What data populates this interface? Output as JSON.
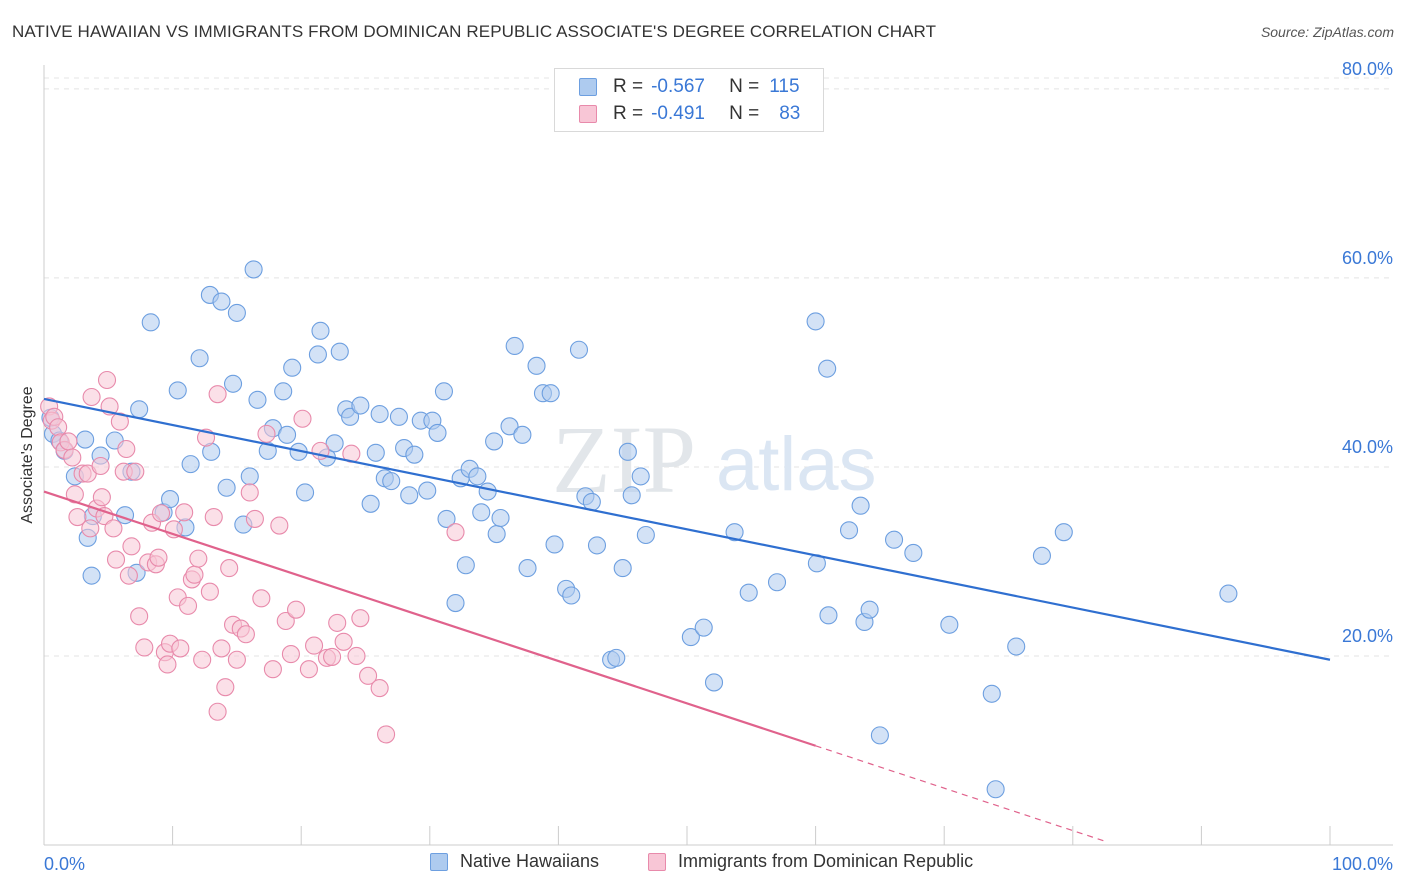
{
  "title": "NATIVE HAWAIIAN VS IMMIGRANTS FROM DOMINICAN REPUBLIC ASSOCIATE'S DEGREE CORRELATION CHART",
  "source": "Source: ZipAtlas.com",
  "watermark": {
    "zip": "ZIP",
    "atlas": "atlas"
  },
  "legend_top": [
    {
      "r_label": "R =",
      "r_value": "-0.567",
      "n_label": "N =",
      "n_value": "115",
      "color": "#aecbef",
      "border": "#6d9fe0"
    },
    {
      "r_label": "R =",
      "r_value": "-0.491",
      "n_label": "N =",
      "n_value": "83",
      "color": "#f8c6d6",
      "border": "#e88aab"
    }
  ],
  "legend_bottom": [
    {
      "label": "Native Hawaiians",
      "color": "#aecbef",
      "border": "#6d9fe0"
    },
    {
      "label": "Immigrants from Dominican Republic",
      "color": "#f8c6d6",
      "border": "#e88aab"
    }
  ],
  "chart_data": {
    "type": "scatter",
    "title": "NATIVE HAWAIIAN VS IMMIGRANTS FROM DOMINICAN REPUBLIC ASSOCIATE'S DEGREE CORRELATION CHART",
    "xlabel": "",
    "ylabel": "Associate's Degree",
    "xlim": [
      0,
      100
    ],
    "ylim": [
      0,
      82
    ],
    "x_tick_labels": [
      "0.0%",
      "100.0%"
    ],
    "y_ticks": [
      20,
      40,
      60,
      80
    ],
    "y_tick_labels": [
      "20.0%",
      "40.0%",
      "60.0%",
      "80.0%"
    ],
    "grid": true,
    "legend": "bottom",
    "series": [
      {
        "name": "Native Hawaiians",
        "color": "#6d9fe0",
        "fill": "#aecbef",
        "trend": {
          "x": [
            0,
            100
          ],
          "y": [
            47.2,
            19.6
          ],
          "color": "#2f6fd0"
        },
        "points": [
          [
            0.5,
            45.2
          ],
          [
            0.7,
            43.5
          ],
          [
            1.2,
            42.8
          ],
          [
            1.6,
            41.7
          ],
          [
            2.4,
            39.0
          ],
          [
            3.2,
            42.9
          ],
          [
            3.4,
            32.5
          ],
          [
            3.7,
            28.5
          ],
          [
            3.8,
            34.8
          ],
          [
            4.4,
            41.2
          ],
          [
            5.5,
            42.8
          ],
          [
            6.3,
            34.9
          ],
          [
            6.8,
            39.5
          ],
          [
            7.2,
            28.8
          ],
          [
            7.4,
            46.1
          ],
          [
            8.3,
            55.3
          ],
          [
            9.3,
            35.2
          ],
          [
            9.8,
            36.6
          ],
          [
            10.4,
            48.1
          ],
          [
            11.0,
            33.6
          ],
          [
            11.4,
            40.3
          ],
          [
            12.1,
            51.5
          ],
          [
            12.9,
            58.2
          ],
          [
            13.0,
            41.6
          ],
          [
            13.8,
            57.5
          ],
          [
            14.2,
            37.8
          ],
          [
            14.7,
            48.8
          ],
          [
            15.0,
            56.3
          ],
          [
            15.5,
            33.9
          ],
          [
            16.0,
            39.0
          ],
          [
            16.3,
            60.9
          ],
          [
            16.6,
            47.1
          ],
          [
            17.4,
            41.7
          ],
          [
            17.8,
            44.1
          ],
          [
            18.6,
            48.0
          ],
          [
            18.9,
            43.4
          ],
          [
            19.3,
            50.5
          ],
          [
            19.8,
            41.6
          ],
          [
            20.3,
            37.3
          ],
          [
            21.3,
            51.9
          ],
          [
            21.5,
            54.4
          ],
          [
            22.0,
            41.0
          ],
          [
            22.6,
            42.5
          ],
          [
            23.0,
            52.2
          ],
          [
            23.5,
            46.1
          ],
          [
            23.8,
            45.3
          ],
          [
            24.6,
            46.5
          ],
          [
            25.4,
            36.1
          ],
          [
            25.8,
            41.5
          ],
          [
            26.1,
            45.6
          ],
          [
            26.5,
            38.8
          ],
          [
            27.0,
            38.5
          ],
          [
            27.6,
            45.3
          ],
          [
            28.0,
            42.0
          ],
          [
            28.4,
            37.0
          ],
          [
            28.8,
            41.3
          ],
          [
            29.3,
            44.9
          ],
          [
            29.8,
            37.5
          ],
          [
            30.2,
            44.9
          ],
          [
            30.6,
            43.6
          ],
          [
            31.1,
            48.0
          ],
          [
            31.3,
            34.5
          ],
          [
            32.0,
            25.6
          ],
          [
            32.4,
            38.8
          ],
          [
            32.8,
            29.6
          ],
          [
            33.1,
            39.8
          ],
          [
            33.7,
            39.0
          ],
          [
            34.0,
            35.2
          ],
          [
            34.5,
            37.4
          ],
          [
            35.0,
            42.7
          ],
          [
            35.2,
            32.9
          ],
          [
            35.5,
            34.6
          ],
          [
            36.2,
            44.3
          ],
          [
            36.6,
            52.8
          ],
          [
            37.2,
            43.4
          ],
          [
            37.6,
            29.3
          ],
          [
            38.3,
            50.7
          ],
          [
            38.8,
            47.8
          ],
          [
            39.4,
            47.8
          ],
          [
            39.7,
            31.8
          ],
          [
            40.6,
            27.1
          ],
          [
            41.0,
            26.4
          ],
          [
            41.6,
            52.4
          ],
          [
            42.1,
            36.9
          ],
          [
            42.6,
            36.3
          ],
          [
            43.0,
            31.7
          ],
          [
            44.1,
            19.6
          ],
          [
            44.5,
            19.8
          ],
          [
            45.0,
            29.3
          ],
          [
            45.4,
            41.6
          ],
          [
            45.7,
            37.0
          ],
          [
            46.4,
            39.0
          ],
          [
            46.8,
            32.8
          ],
          [
            50.3,
            22.0
          ],
          [
            51.3,
            23.0
          ],
          [
            52.1,
            17.2
          ],
          [
            53.7,
            33.1
          ],
          [
            54.8,
            26.7
          ],
          [
            57.0,
            27.8
          ],
          [
            60.0,
            55.4
          ],
          [
            60.1,
            29.8
          ],
          [
            60.9,
            50.4
          ],
          [
            61.0,
            24.3
          ],
          [
            62.6,
            33.3
          ],
          [
            63.5,
            35.9
          ],
          [
            63.8,
            23.6
          ],
          [
            64.2,
            24.9
          ],
          [
            66.1,
            32.3
          ],
          [
            67.6,
            30.9
          ],
          [
            70.4,
            23.3
          ],
          [
            73.7,
            16.0
          ],
          [
            75.6,
            21.0
          ],
          [
            77.6,
            30.6
          ],
          [
            79.3,
            33.1
          ],
          [
            92.1,
            26.6
          ],
          [
            74.0,
            5.9
          ],
          [
            65.0,
            11.6
          ]
        ]
      },
      {
        "name": "Immigrants from Dominican Republic",
        "color": "#e88aab",
        "fill": "#f8c6d6",
        "trend": {
          "x": [
            0,
            60
          ],
          "y": [
            37.4,
            10.5
          ],
          "color": "#e0628c",
          "dashed_to": [
            82.5,
            0.4
          ]
        },
        "points": [
          [
            0.4,
            46.4
          ],
          [
            0.6,
            44.9
          ],
          [
            0.8,
            45.3
          ],
          [
            1.1,
            44.2
          ],
          [
            1.3,
            42.6
          ],
          [
            1.6,
            41.8
          ],
          [
            1.9,
            42.7
          ],
          [
            2.2,
            41.0
          ],
          [
            2.4,
            37.1
          ],
          [
            2.6,
            34.7
          ],
          [
            3.0,
            39.3
          ],
          [
            3.4,
            39.3
          ],
          [
            3.6,
            33.5
          ],
          [
            3.7,
            47.4
          ],
          [
            4.1,
            35.6
          ],
          [
            4.4,
            40.1
          ],
          [
            4.5,
            36.8
          ],
          [
            4.7,
            34.8
          ],
          [
            4.9,
            49.2
          ],
          [
            5.1,
            46.4
          ],
          [
            5.4,
            33.5
          ],
          [
            5.6,
            30.2
          ],
          [
            5.9,
            44.8
          ],
          [
            6.2,
            39.5
          ],
          [
            6.4,
            41.9
          ],
          [
            6.6,
            28.5
          ],
          [
            6.8,
            31.6
          ],
          [
            7.1,
            39.5
          ],
          [
            7.4,
            24.2
          ],
          [
            7.8,
            20.9
          ],
          [
            8.1,
            29.9
          ],
          [
            8.4,
            34.1
          ],
          [
            8.7,
            29.7
          ],
          [
            8.9,
            30.4
          ],
          [
            9.1,
            35.1
          ],
          [
            9.4,
            20.4
          ],
          [
            9.6,
            19.1
          ],
          [
            9.8,
            21.3
          ],
          [
            10.1,
            33.4
          ],
          [
            10.4,
            26.2
          ],
          [
            10.6,
            20.8
          ],
          [
            10.9,
            35.2
          ],
          [
            11.2,
            25.3
          ],
          [
            11.5,
            28.1
          ],
          [
            11.7,
            28.6
          ],
          [
            12.0,
            30.3
          ],
          [
            12.3,
            19.6
          ],
          [
            12.6,
            43.1
          ],
          [
            12.9,
            26.8
          ],
          [
            13.2,
            34.7
          ],
          [
            13.5,
            47.7
          ],
          [
            13.8,
            20.8
          ],
          [
            14.1,
            16.7
          ],
          [
            14.4,
            29.3
          ],
          [
            14.7,
            23.3
          ],
          [
            15.0,
            19.6
          ],
          [
            15.3,
            22.9
          ],
          [
            15.7,
            22.3
          ],
          [
            16.0,
            37.3
          ],
          [
            16.4,
            34.5
          ],
          [
            16.9,
            26.1
          ],
          [
            17.3,
            43.5
          ],
          [
            17.8,
            18.6
          ],
          [
            18.3,
            33.8
          ],
          [
            18.8,
            23.7
          ],
          [
            19.2,
            20.2
          ],
          [
            19.6,
            24.9
          ],
          [
            20.1,
            45.1
          ],
          [
            20.6,
            18.6
          ],
          [
            21.0,
            21.1
          ],
          [
            21.5,
            41.7
          ],
          [
            22.0,
            19.8
          ],
          [
            22.4,
            19.9
          ],
          [
            22.8,
            23.5
          ],
          [
            23.3,
            21.5
          ],
          [
            23.9,
            41.4
          ],
          [
            24.3,
            20.0
          ],
          [
            24.6,
            24.0
          ],
          [
            25.2,
            17.9
          ],
          [
            26.1,
            16.6
          ],
          [
            26.6,
            11.7
          ],
          [
            32.0,
            33.1
          ],
          [
            13.5,
            14.1
          ]
        ]
      }
    ]
  }
}
